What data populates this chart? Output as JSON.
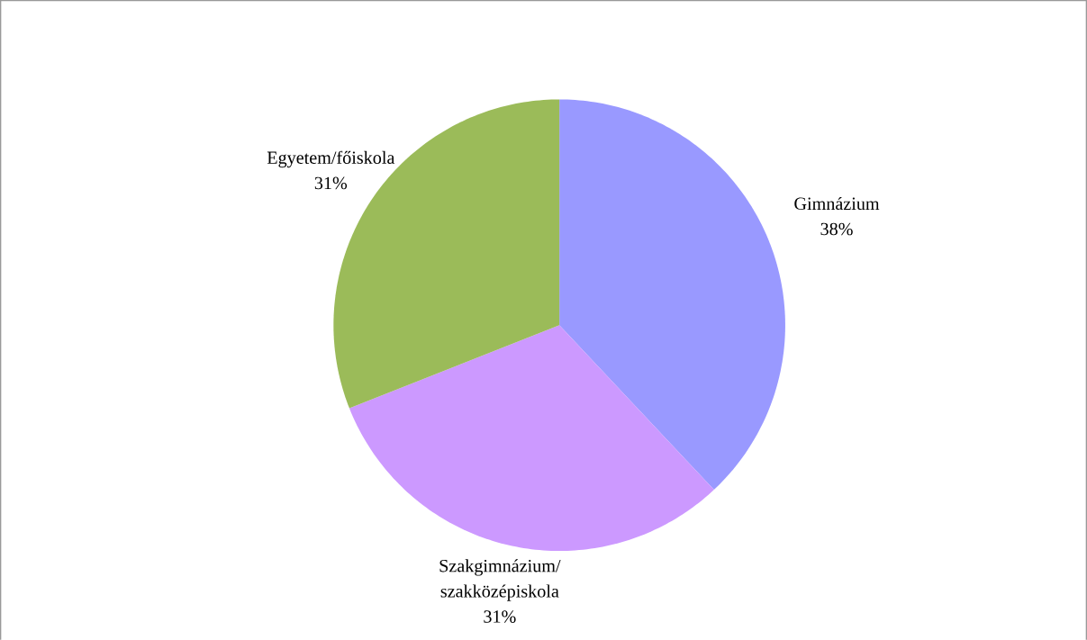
{
  "chart_data": {
    "type": "pie",
    "categories": [
      "Gimnázium",
      "Szakgimnázium/ szakközépiskola",
      "Egyetem/főiskola"
    ],
    "values": [
      38,
      31,
      31
    ],
    "value_labels": [
      "38%",
      "31%",
      "31%"
    ],
    "colors": [
      "#9999ff",
      "#cc99ff",
      "#9bbb59"
    ]
  }
}
